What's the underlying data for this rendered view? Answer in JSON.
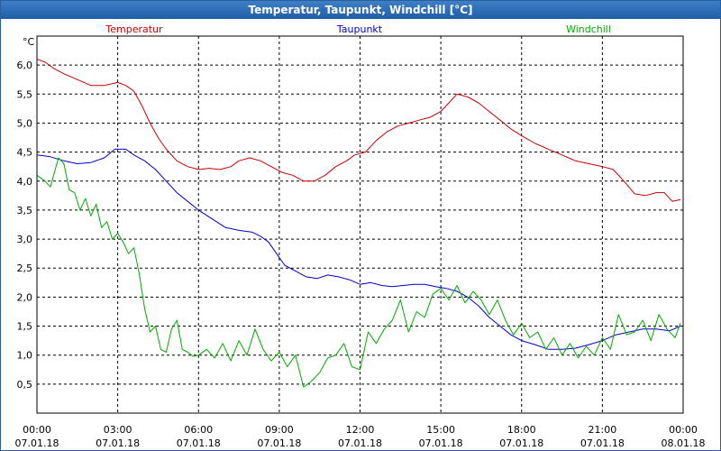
{
  "window": {
    "title": "Temperatur, Taupunkt, Windchill [°C]"
  },
  "chart_data": {
    "type": "line",
    "title": "Temperatur, Taupunkt, Windchill [°C]",
    "ylabel": "°C",
    "xlabel": "",
    "grid": true,
    "ylim": [
      0.0,
      6.5
    ],
    "xlim": [
      0,
      24
    ],
    "y_ticks": [
      "0,5",
      "1,0",
      "1,5",
      "2,0",
      "2,5",
      "3,0",
      "3,5",
      "4,0",
      "4,5",
      "5,0",
      "5,5",
      "6,0"
    ],
    "x_ticks": [
      {
        "time": "00:00",
        "date": "07.01.18"
      },
      {
        "time": "03:00",
        "date": "07.01.18"
      },
      {
        "time": "06:00",
        "date": "07.01.18"
      },
      {
        "time": "09:00",
        "date": "07.01.18"
      },
      {
        "time": "12:00",
        "date": "07.01.18"
      },
      {
        "time": "15:00",
        "date": "07.01.18"
      },
      {
        "time": "18:00",
        "date": "07.01.18"
      },
      {
        "time": "21:00",
        "date": "07.01.18"
      },
      {
        "time": "00:00",
        "date": "08.01.18"
      }
    ],
    "legend": [
      {
        "name": "Temperatur",
        "color": "#cc0000"
      },
      {
        "name": "Taupunkt",
        "color": "#0000cc"
      },
      {
        "name": "Windchill",
        "color": "#00aa00"
      }
    ],
    "series": [
      {
        "name": "Temperatur",
        "color": "#cc0000",
        "x": [
          0,
          0.3,
          0.6,
          1.0,
          1.5,
          2.0,
          2.5,
          3.0,
          3.3,
          3.6,
          3.9,
          4.2,
          4.5,
          4.8,
          5.2,
          5.6,
          6.0,
          6.4,
          6.8,
          7.2,
          7.5,
          7.9,
          8.3,
          8.7,
          9.1,
          9.5,
          9.9,
          10.3,
          10.7,
          11.1,
          11.5,
          11.8,
          12.2,
          12.6,
          13.0,
          13.4,
          13.8,
          14.2,
          14.6,
          15.0,
          15.3,
          15.6,
          16.0,
          16.4,
          16.8,
          17.2,
          17.6,
          18.0,
          18.5,
          19.0,
          19.5,
          20.0,
          20.5,
          21.0,
          21.4,
          21.8,
          22.2,
          22.6,
          23.0,
          23.3,
          23.6,
          23.9
        ],
        "values": [
          6.1,
          6.05,
          5.95,
          5.85,
          5.75,
          5.65,
          5.65,
          5.7,
          5.65,
          5.55,
          5.3,
          5.0,
          4.75,
          4.55,
          4.35,
          4.25,
          4.2,
          4.22,
          4.2,
          4.25,
          4.35,
          4.4,
          4.35,
          4.25,
          4.15,
          4.1,
          4.0,
          4.0,
          4.1,
          4.25,
          4.35,
          4.45,
          4.5,
          4.7,
          4.85,
          4.95,
          5.0,
          5.05,
          5.1,
          5.2,
          5.35,
          5.5,
          5.45,
          5.35,
          5.2,
          5.05,
          4.9,
          4.78,
          4.65,
          4.55,
          4.45,
          4.35,
          4.3,
          4.25,
          4.2,
          4.0,
          3.78,
          3.75,
          3.8,
          3.8,
          3.65,
          3.68
        ]
      },
      {
        "name": "Taupunkt",
        "color": "#0000cc",
        "x": [
          0,
          0.5,
          1.0,
          1.5,
          2.0,
          2.5,
          2.9,
          3.3,
          3.6,
          4.0,
          4.4,
          4.8,
          5.2,
          5.6,
          6.0,
          6.5,
          7.0,
          7.5,
          8.0,
          8.3,
          8.6,
          8.9,
          9.2,
          9.6,
          10.0,
          10.4,
          10.8,
          11.2,
          11.6,
          12.0,
          12.4,
          12.8,
          13.2,
          13.6,
          14.0,
          14.4,
          14.8,
          15.2,
          15.6,
          16.0,
          16.4,
          16.8,
          17.2,
          17.6,
          18.0,
          18.5,
          19.0,
          19.5,
          20.0,
          20.5,
          21.0,
          21.5,
          22.0,
          22.5,
          23.0,
          23.5,
          23.9
        ],
        "values": [
          4.45,
          4.42,
          4.35,
          4.3,
          4.32,
          4.4,
          4.55,
          4.55,
          4.45,
          4.35,
          4.2,
          4.0,
          3.8,
          3.65,
          3.5,
          3.35,
          3.2,
          3.15,
          3.12,
          3.05,
          2.95,
          2.75,
          2.55,
          2.45,
          2.35,
          2.32,
          2.38,
          2.35,
          2.3,
          2.22,
          2.25,
          2.2,
          2.18,
          2.2,
          2.22,
          2.22,
          2.18,
          2.15,
          2.1,
          2.0,
          1.85,
          1.65,
          1.5,
          1.35,
          1.25,
          1.18,
          1.1,
          1.1,
          1.12,
          1.18,
          1.25,
          1.35,
          1.4,
          1.45,
          1.45,
          1.42,
          1.5
        ]
      },
      {
        "name": "Windchill",
        "color": "#00aa00",
        "x": [
          0,
          0.3,
          0.5,
          0.8,
          1.0,
          1.2,
          1.4,
          1.6,
          1.8,
          2.0,
          2.2,
          2.4,
          2.6,
          2.8,
          3.0,
          3.2,
          3.4,
          3.6,
          3.8,
          4.0,
          4.2,
          4.4,
          4.6,
          4.8,
          5.0,
          5.2,
          5.4,
          5.6,
          5.8,
          6.0,
          6.3,
          6.6,
          6.9,
          7.2,
          7.5,
          7.8,
          8.1,
          8.4,
          8.7,
          9.0,
          9.3,
          9.6,
          9.9,
          10.2,
          10.5,
          10.8,
          11.1,
          11.4,
          11.7,
          12.0,
          12.3,
          12.6,
          12.9,
          13.2,
          13.5,
          13.8,
          14.1,
          14.4,
          14.7,
          15.0,
          15.3,
          15.6,
          15.9,
          16.2,
          16.5,
          16.8,
          17.1,
          17.4,
          17.7,
          18.0,
          18.3,
          18.6,
          18.9,
          19.2,
          19.5,
          19.8,
          20.1,
          20.4,
          20.7,
          21.0,
          21.3,
          21.6,
          21.9,
          22.2,
          22.5,
          22.8,
          23.1,
          23.4,
          23.7,
          23.9
        ],
        "values": [
          4.1,
          4.0,
          3.9,
          4.4,
          4.3,
          3.85,
          3.8,
          3.5,
          3.7,
          3.4,
          3.6,
          3.2,
          3.3,
          3.0,
          3.1,
          2.95,
          2.75,
          2.85,
          2.4,
          1.8,
          1.4,
          1.5,
          1.1,
          1.05,
          1.45,
          1.6,
          1.1,
          1.05,
          0.98,
          1.0,
          1.1,
          0.95,
          1.2,
          0.9,
          1.25,
          1.0,
          1.45,
          1.1,
          0.9,
          1.05,
          0.8,
          1.0,
          0.45,
          0.55,
          0.7,
          0.95,
          1.0,
          1.2,
          0.8,
          0.75,
          1.4,
          1.2,
          1.45,
          1.6,
          1.95,
          1.4,
          1.75,
          1.65,
          2.05,
          2.15,
          1.95,
          2.2,
          1.9,
          2.1,
          1.95,
          1.7,
          1.95,
          1.6,
          1.35,
          1.55,
          1.3,
          1.4,
          1.1,
          1.3,
          1.0,
          1.2,
          0.95,
          1.15,
          1.0,
          1.3,
          1.1,
          1.7,
          1.35,
          1.4,
          1.6,
          1.25,
          1.7,
          1.45,
          1.3,
          1.55
        ]
      }
    ]
  }
}
